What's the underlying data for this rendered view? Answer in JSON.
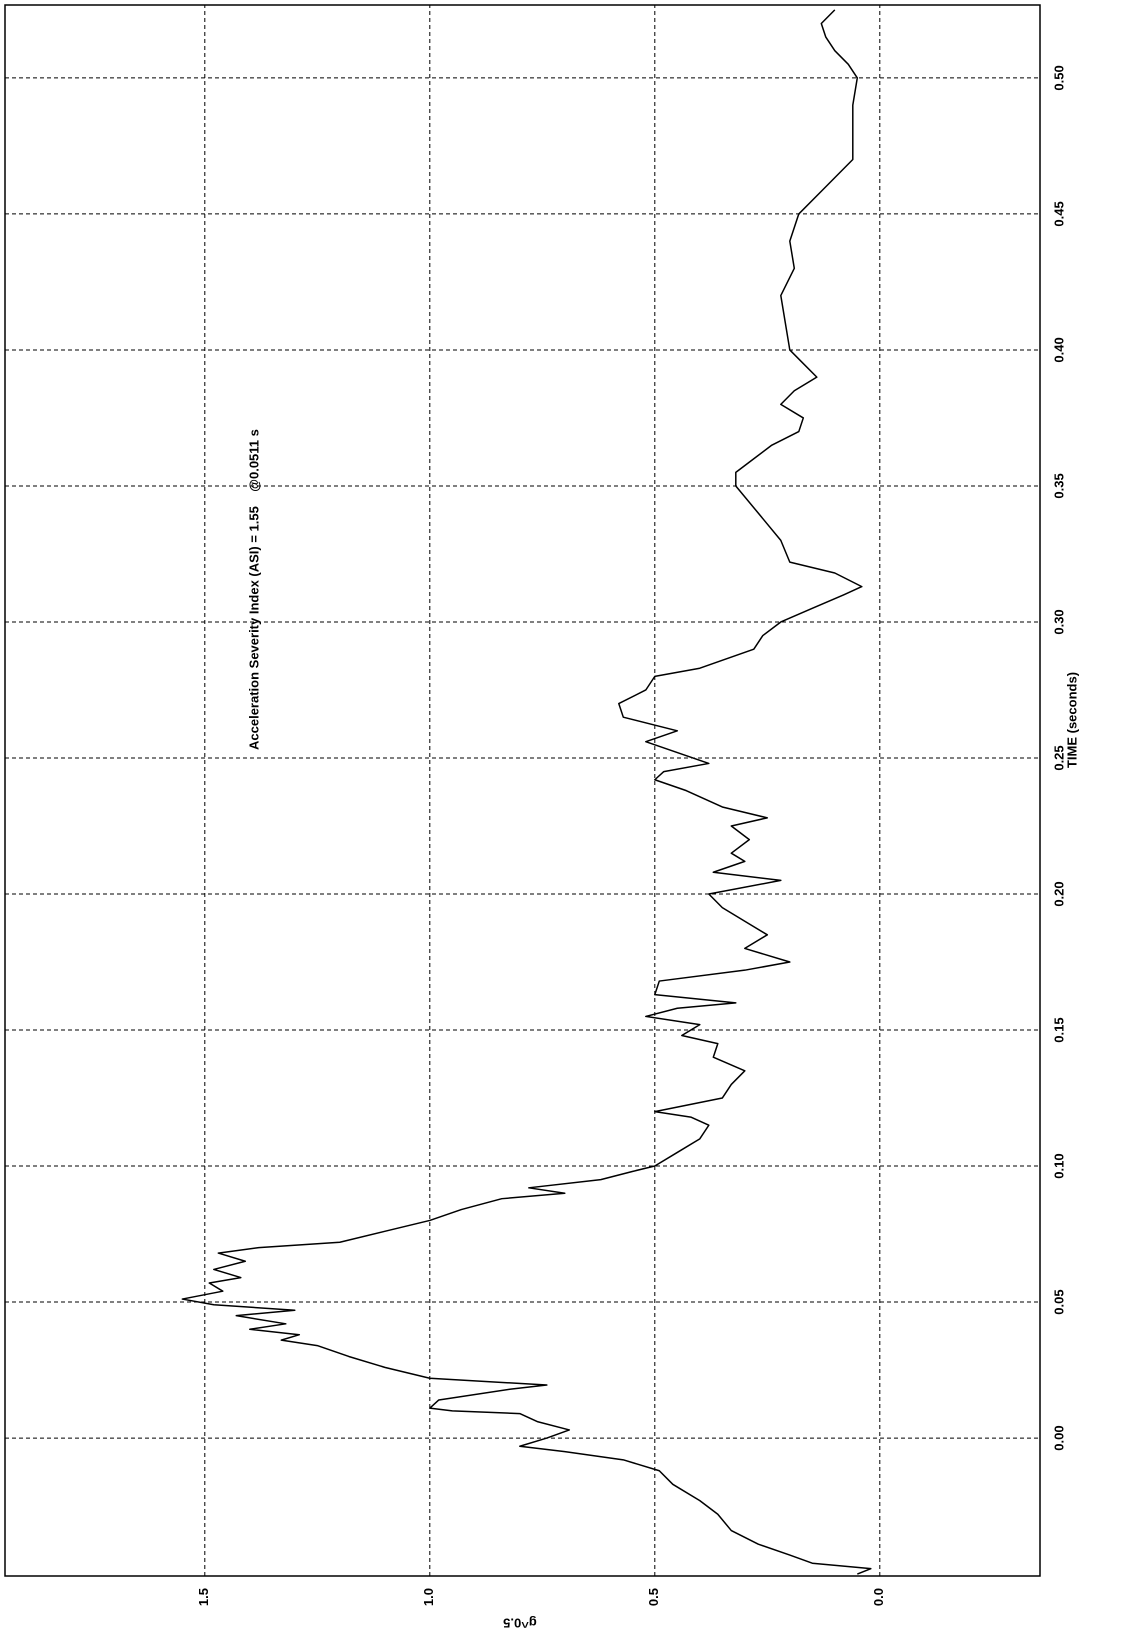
{
  "chart_data": {
    "type": "line",
    "annotation": "Acceleration Severity Index (ASI) = 1.55    @0.0511 s",
    "x_label": "TIME (seconds)",
    "y_label": "g^0.5",
    "x": [
      -0.05,
      -0.048,
      -0.046,
      -0.043,
      -0.039,
      -0.034,
      -0.028,
      -0.023,
      -0.017,
      -0.012,
      -0.008,
      -0.005,
      -0.003,
      0.0,
      0.003,
      0.006,
      0.009,
      0.01,
      0.011,
      0.014,
      0.018,
      0.0195,
      0.022,
      0.026,
      0.03,
      0.034,
      0.036,
      0.038,
      0.04,
      0.042,
      0.045,
      0.047,
      0.049,
      0.0511,
      0.054,
      0.057,
      0.059,
      0.062,
      0.065,
      0.068,
      0.07,
      0.072,
      0.076,
      0.08,
      0.084,
      0.088,
      0.09,
      0.092,
      0.095,
      0.098,
      0.1,
      0.105,
      0.11,
      0.115,
      0.118,
      0.12,
      0.125,
      0.13,
      0.135,
      0.14,
      0.145,
      0.148,
      0.152,
      0.155,
      0.158,
      0.16,
      0.163,
      0.168,
      0.172,
      0.175,
      0.18,
      0.185,
      0.19,
      0.195,
      0.2,
      0.205,
      0.208,
      0.212,
      0.215,
      0.22,
      0.225,
      0.228,
      0.232,
      0.238,
      0.242,
      0.245,
      0.248,
      0.252,
      0.256,
      0.26,
      0.265,
      0.27,
      0.275,
      0.28,
      0.283,
      0.29,
      0.295,
      0.3,
      0.305,
      0.31,
      0.313,
      0.318,
      0.322,
      0.33,
      0.34,
      0.35,
      0.355,
      0.36,
      0.365,
      0.37,
      0.375,
      0.38,
      0.385,
      0.39,
      0.395,
      0.4,
      0.41,
      0.42,
      0.43,
      0.44,
      0.45,
      0.46,
      0.47,
      0.48,
      0.49,
      0.5,
      0.505,
      0.51,
      0.515,
      0.52,
      0.525
    ],
    "series": [
      {
        "color": "#000000",
        "values": [
          0.05,
          0.02,
          0.15,
          0.2,
          0.27,
          0.33,
          0.36,
          0.4,
          0.46,
          0.49,
          0.57,
          0.7,
          0.8,
          0.74,
          0.69,
          0.76,
          0.8,
          0.95,
          1.0,
          0.98,
          0.82,
          0.74,
          1.0,
          1.1,
          1.18,
          1.25,
          1.33,
          1.29,
          1.4,
          1.32,
          1.43,
          1.3,
          1.48,
          1.55,
          1.46,
          1.49,
          1.42,
          1.48,
          1.41,
          1.47,
          1.38,
          1.2,
          1.1,
          1.0,
          0.93,
          0.84,
          0.7,
          0.78,
          0.62,
          0.55,
          0.5,
          0.45,
          0.4,
          0.38,
          0.42,
          0.5,
          0.35,
          0.33,
          0.3,
          0.37,
          0.36,
          0.44,
          0.4,
          0.52,
          0.45,
          0.32,
          0.5,
          0.49,
          0.3,
          0.2,
          0.3,
          0.25,
          0.3,
          0.35,
          0.38,
          0.22,
          0.37,
          0.3,
          0.33,
          0.29,
          0.33,
          0.25,
          0.35,
          0.43,
          0.5,
          0.48,
          0.38,
          0.45,
          0.52,
          0.45,
          0.57,
          0.58,
          0.52,
          0.5,
          0.4,
          0.28,
          0.26,
          0.22,
          0.15,
          0.08,
          0.04,
          0.1,
          0.2,
          0.22,
          0.27,
          0.32,
          0.32,
          0.28,
          0.24,
          0.18,
          0.17,
          0.22,
          0.19,
          0.14,
          0.17,
          0.2,
          0.21,
          0.22,
          0.19,
          0.2,
          0.18,
          0.12,
          0.06,
          0.06,
          0.06,
          0.05,
          0.07,
          0.1,
          0.12,
          0.13,
          0.1
        ]
      }
    ],
    "xlim": [
      -0.0507,
      0.5268
    ],
    "xticks": [
      {
        "value": 0.0,
        "label": "0.00"
      },
      0.05,
      {
        "value": 0.1,
        "label": "0.10"
      },
      0.15,
      {
        "value": 0.2,
        "label": "0.20"
      },
      0.25,
      {
        "value": 0.3,
        "label": "0.30"
      },
      0.35,
      {
        "value": 0.4,
        "label": "0.40"
      },
      0.45,
      {
        "value": 0.5,
        "label": "0.50"
      }
    ],
    "ylim": [
      -0.356,
      1.944
    ],
    "yticks": [
      {
        "value": 0.0,
        "label": "0.0"
      },
      0.5,
      {
        "value": 1.0,
        "label": "1.0"
      },
      1.5
    ],
    "grid": true
  }
}
